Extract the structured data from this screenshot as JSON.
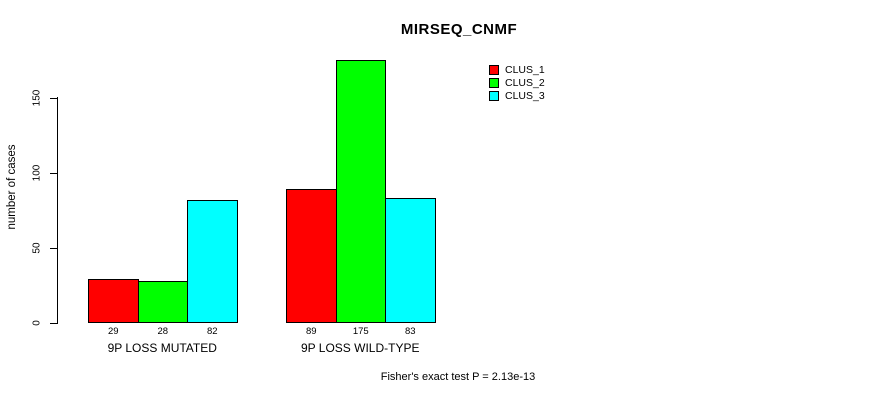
{
  "title": "MIRSEQ_CNMF",
  "y_axis": {
    "label": "number of cases"
  },
  "footer": "Fisher's exact test P = 2.13e-13",
  "legend": {
    "position": "top-right",
    "items": [
      "CLUS_1",
      "CLUS_2",
      "CLUS_3"
    ]
  },
  "chart_data": {
    "type": "bar",
    "grouped": true,
    "title": "MIRSEQ_CNMF",
    "xlabel": "",
    "ylabel": "number of cases",
    "categories": [
      "9P LOSS MUTATED",
      "9P LOSS WILD-TYPE"
    ],
    "series": [
      {
        "name": "CLUS_1",
        "color": "#ff0000",
        "values": [
          29,
          89
        ]
      },
      {
        "name": "CLUS_2",
        "color": "#00ff00",
        "values": [
          28,
          175
        ]
      },
      {
        "name": "CLUS_3",
        "color": "#00ffff",
        "values": [
          82,
          83
        ]
      }
    ],
    "bar_value_labels": [
      [
        29,
        28,
        82
      ],
      [
        89,
        175,
        83
      ]
    ],
    "ylim": [
      0,
      175
    ],
    "yticks": [
      0,
      50,
      100,
      150
    ],
    "grid": false,
    "legend_position": "top-right",
    "annotation": "Fisher's exact test P = 2.13e-13"
  }
}
